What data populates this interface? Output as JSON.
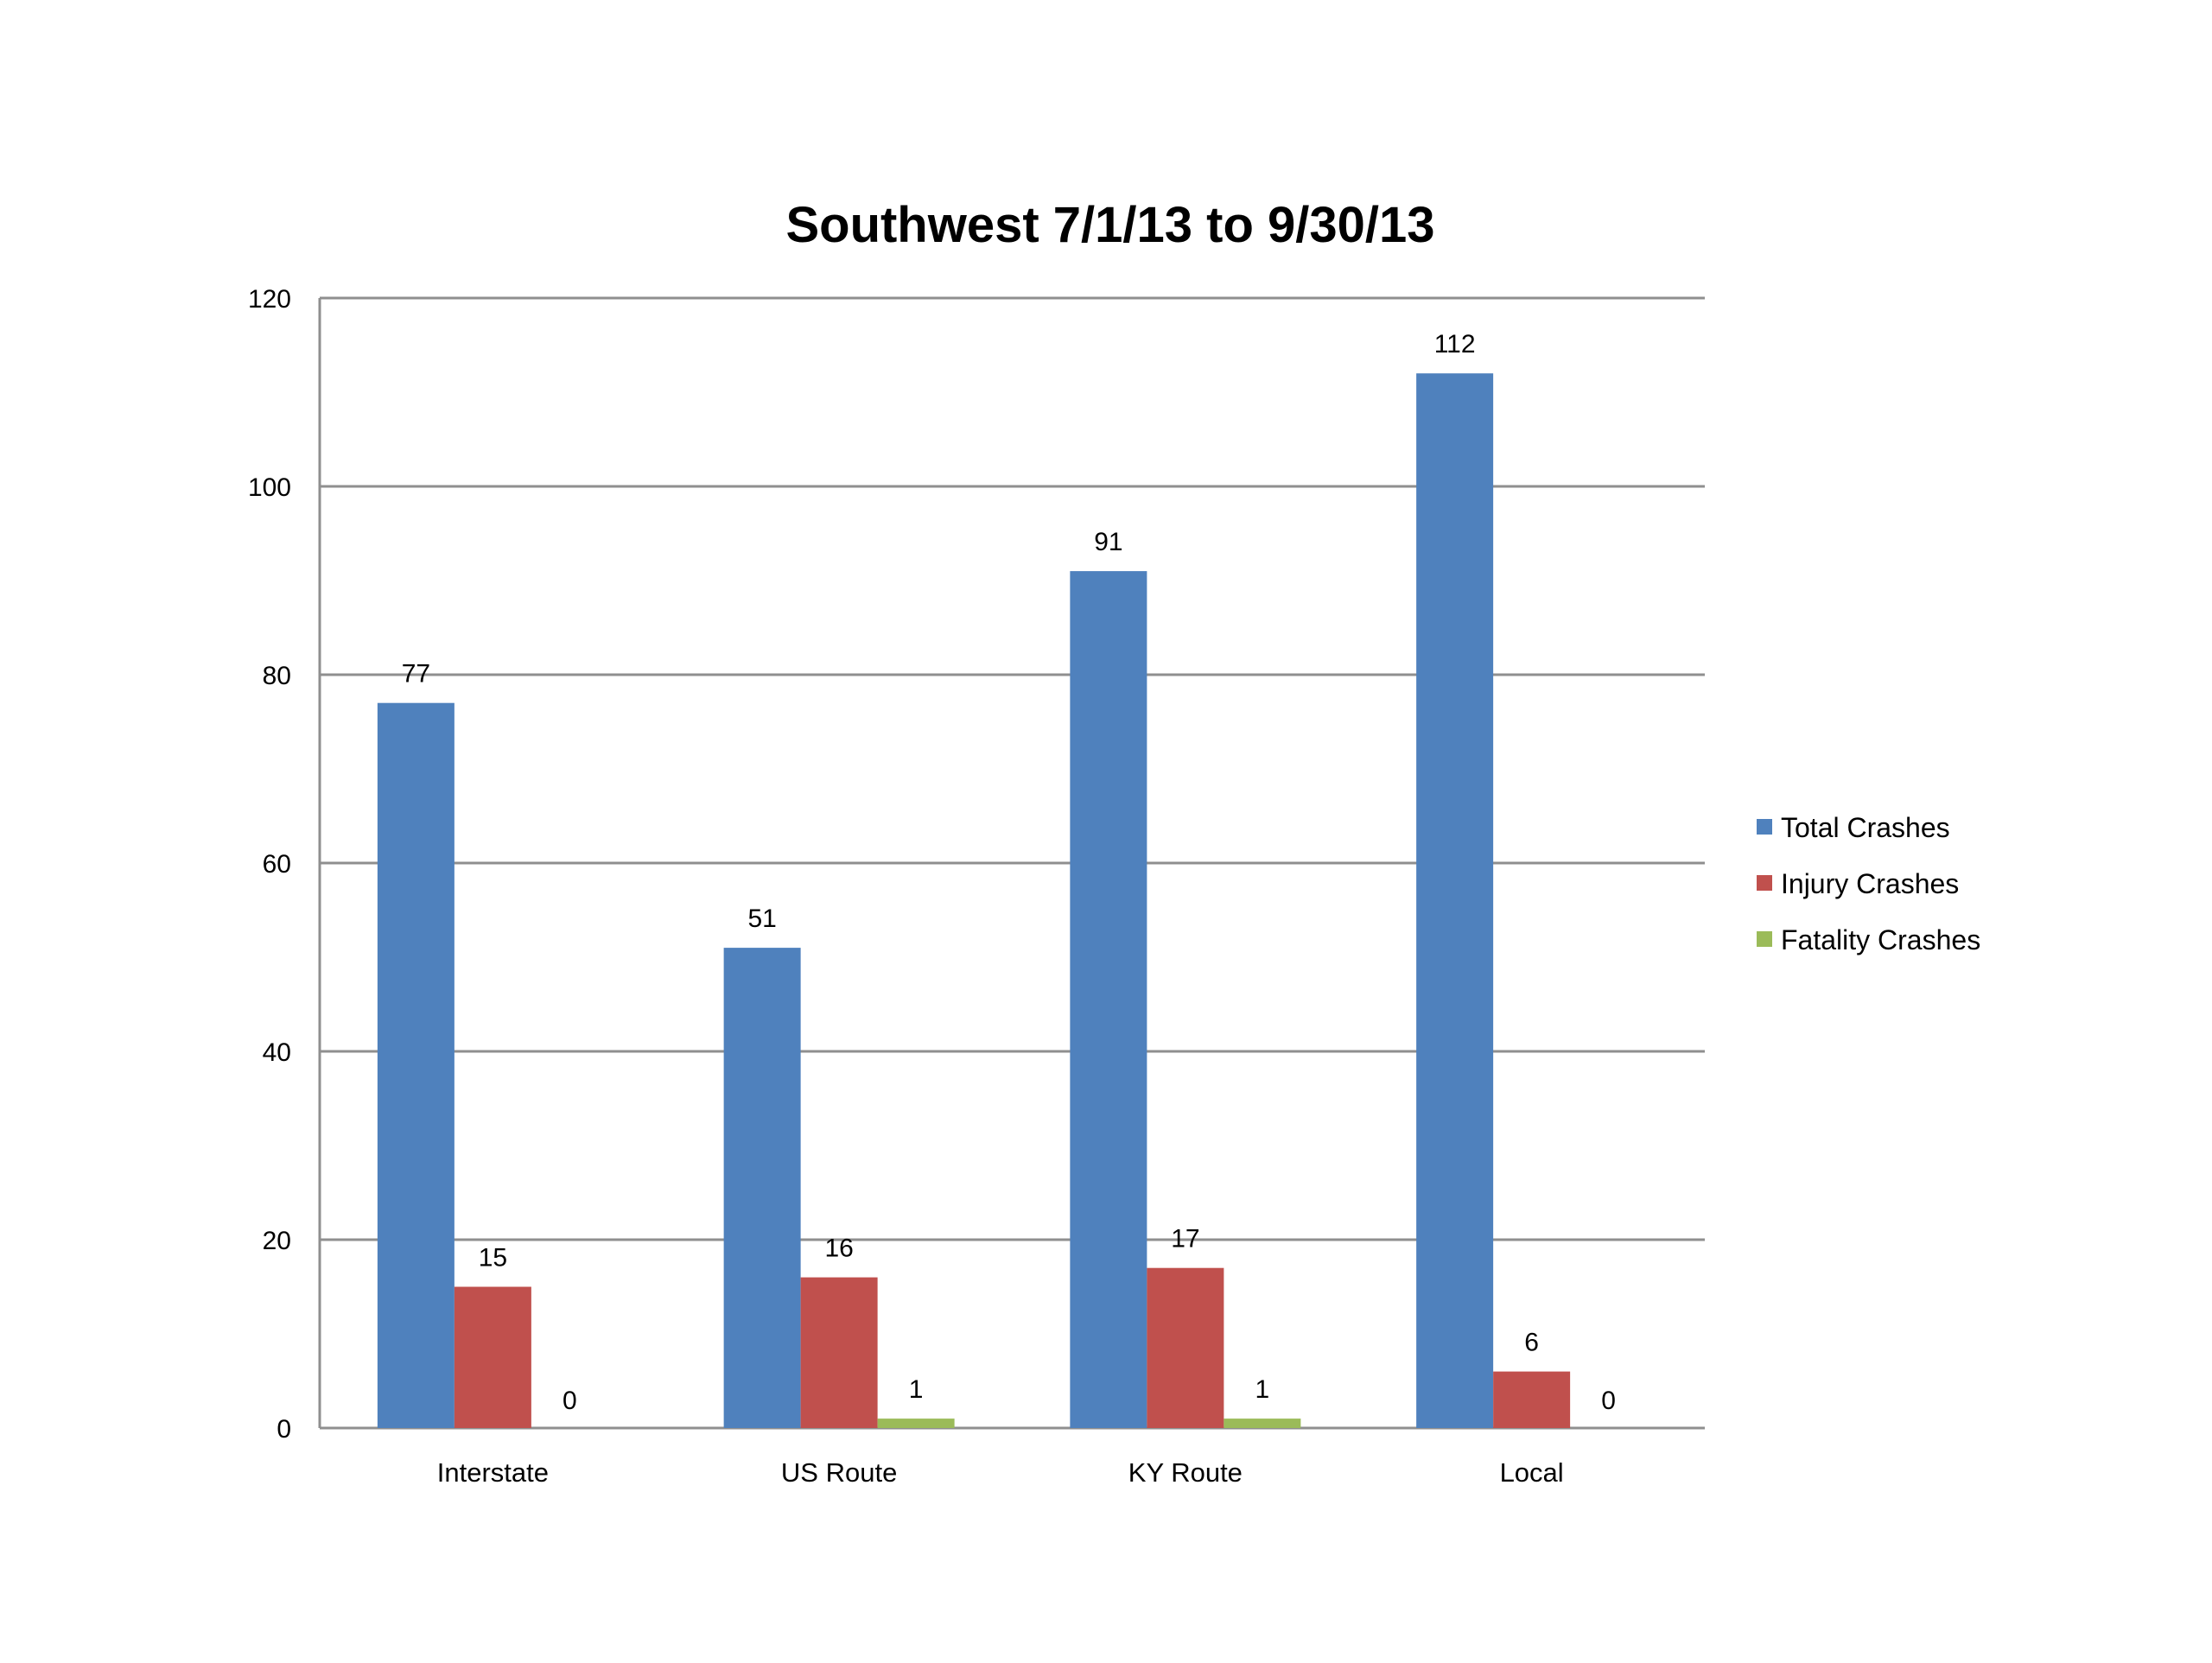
{
  "chart_data": {
    "type": "bar",
    "title": "Southwest 7/1/13 to 9/30/13",
    "xlabel": "",
    "ylabel": "",
    "categories": [
      "Interstate",
      "US Route",
      "KY Route",
      "Local"
    ],
    "series": [
      {
        "name": "Total Crashes",
        "values": [
          77,
          51,
          91,
          112
        ],
        "color": "#4F81BD"
      },
      {
        "name": "Injury Crashes",
        "values": [
          15,
          16,
          17,
          6
        ],
        "color": "#C0504D"
      },
      {
        "name": "Fatality Crashes",
        "values": [
          0,
          1,
          1,
          0
        ],
        "color": "#9BBB59"
      }
    ],
    "ylim": [
      0,
      120
    ],
    "yticks": [
      0,
      20,
      40,
      60,
      80,
      100,
      120
    ],
    "grid": true,
    "legend_position": "right",
    "data_labels": true
  }
}
